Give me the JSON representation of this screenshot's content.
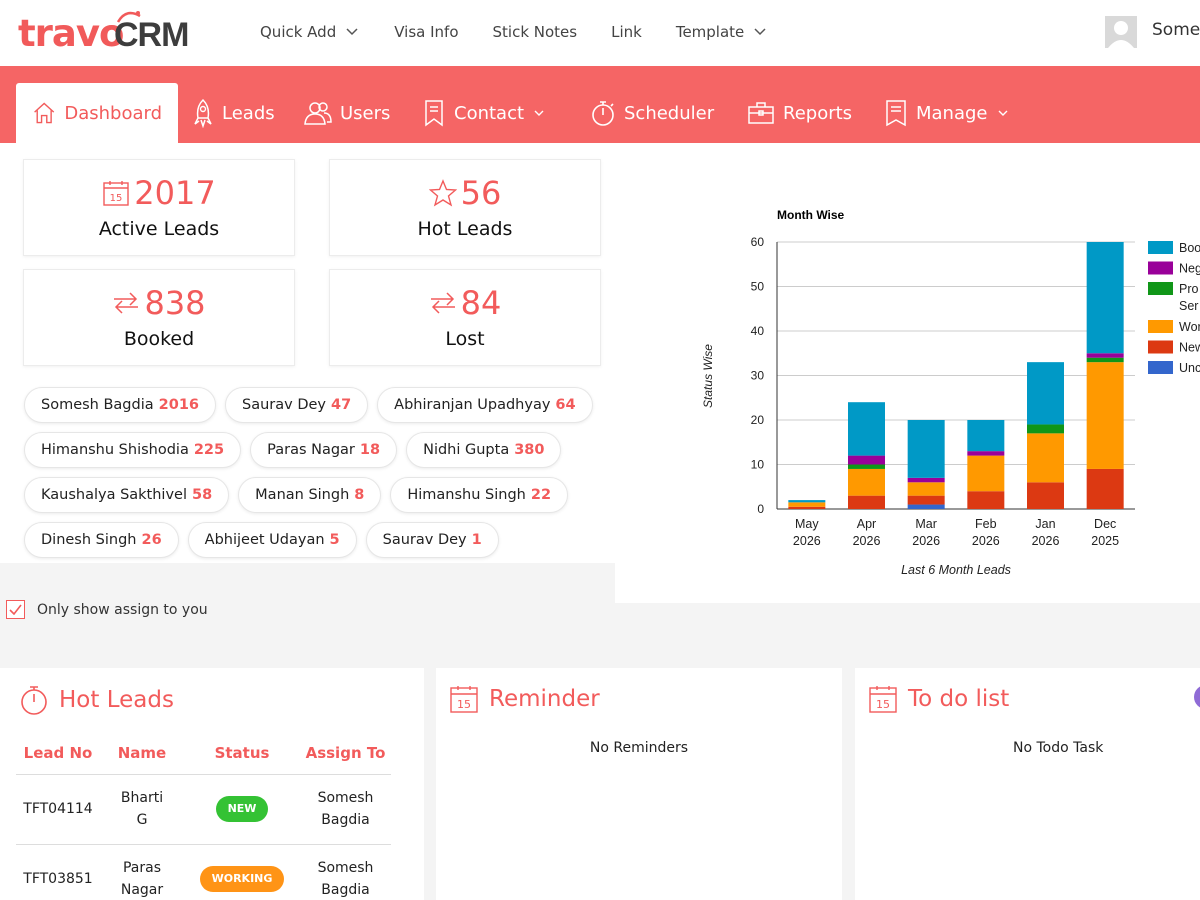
{
  "brand": {
    "logo_left": "travo",
    "logo_right": "CRM",
    "accent": "#f56565"
  },
  "topnav": {
    "items": [
      {
        "label": "Quick Add",
        "has_dropdown": true
      },
      {
        "label": "Visa Info",
        "has_dropdown": false
      },
      {
        "label": "Stick Notes",
        "has_dropdown": false
      },
      {
        "label": "Link",
        "has_dropdown": false
      },
      {
        "label": "Template",
        "has_dropdown": true
      }
    ],
    "username": "Some"
  },
  "mainnav": {
    "items": [
      {
        "label": "Dashboard",
        "icon": "home-icon",
        "active": true
      },
      {
        "label": "Leads",
        "icon": "rocket-icon"
      },
      {
        "label": "Users",
        "icon": "users-icon"
      },
      {
        "label": "Contact",
        "icon": "contact-icon",
        "has_dropdown": true
      },
      {
        "label": "Scheduler",
        "icon": "stopwatch-icon"
      },
      {
        "label": "Reports",
        "icon": "briefcase-icon"
      },
      {
        "label": "Manage",
        "icon": "clipboard-icon",
        "has_dropdown": true
      }
    ]
  },
  "stats": [
    {
      "value": "2017",
      "label": "Active Leads",
      "icon": "calendar-icon"
    },
    {
      "value": "56",
      "label": "Hot Leads",
      "icon": "star-icon"
    },
    {
      "value": "838",
      "label": "Booked",
      "icon": "exchange-icon"
    },
    {
      "value": "84",
      "label": "Lost",
      "icon": "exchange-icon"
    }
  ],
  "user_chips": [
    [
      {
        "name": "Somesh Bagdia",
        "count": "2016"
      },
      {
        "name": "Saurav Dey",
        "count": "47"
      },
      {
        "name": "Abhiranjan Upadhyay",
        "count": "64"
      }
    ],
    [
      {
        "name": "Himanshu Shishodia",
        "count": "225"
      },
      {
        "name": "Paras Nagar",
        "count": "18"
      },
      {
        "name": "Nidhi Gupta",
        "count": "380"
      }
    ],
    [
      {
        "name": "Kaushalya Sakthivel",
        "count": "58"
      },
      {
        "name": "Manan Singh",
        "count": "8"
      },
      {
        "name": "Himanshu Singh",
        "count": "22"
      }
    ],
    [
      {
        "name": "Dinesh Singh",
        "count": "26"
      },
      {
        "name": "Abhijeet Udayan",
        "count": "5"
      },
      {
        "name": "Saurav Dey",
        "count": "1"
      }
    ]
  ],
  "chart_data": {
    "type": "bar",
    "stacked": true,
    "title": "Month Wise",
    "xlabel": "Last 6 Month Leads",
    "ylabel": "Status Wise",
    "ylim": [
      0,
      60
    ],
    "yticks": [
      0,
      10,
      20,
      30,
      40,
      50,
      60
    ],
    "grid": true,
    "legend_position": "right",
    "categories": [
      [
        "May",
        "2026"
      ],
      [
        "Apr",
        "2026"
      ],
      [
        "Mar",
        "2026"
      ],
      [
        "Feb",
        "2026"
      ],
      [
        "Jan",
        "2026"
      ],
      [
        "Dec",
        "2025"
      ]
    ],
    "series": [
      {
        "name": "Unc",
        "color": "#3366cc",
        "values": [
          0,
          0,
          1,
          0,
          0,
          0
        ]
      },
      {
        "name": "New",
        "color": "#dc3912",
        "values": [
          0.5,
          3,
          2,
          4,
          6,
          9
        ]
      },
      {
        "name": "Wor",
        "color": "#ff9900",
        "values": [
          1,
          6,
          3,
          8,
          11,
          24
        ]
      },
      {
        "name": "Pro Ser",
        "color": "#109618",
        "values": [
          0,
          1,
          0,
          0,
          2,
          1
        ]
      },
      {
        "name": "Neg",
        "color": "#990099",
        "values": [
          0,
          2,
          1,
          1,
          0,
          1
        ]
      },
      {
        "name": "Boo",
        "color": "#0099c6",
        "values": [
          0.5,
          12,
          13,
          7,
          14,
          25
        ]
      }
    ],
    "legend_order": [
      "Boo",
      "Neg",
      "Pro Ser",
      "Wor",
      "New",
      "Unc"
    ]
  },
  "assign_filter": {
    "label": "Only show assign to you",
    "checked": true
  },
  "hot_leads": {
    "title": "Hot Leads",
    "columns": [
      "Lead No",
      "Name",
      "Status",
      "Assign To"
    ],
    "rows": [
      {
        "lead_no": "TFT04114",
        "name": "Bharti G",
        "status": "NEW",
        "status_color": "#34c234",
        "assign_to": "Somesh Bagdia"
      },
      {
        "lead_no": "TFT03851",
        "name": "Paras Nagar",
        "status": "WORKING",
        "status_color": "#ff9416",
        "assign_to": "Somesh Bagdia"
      }
    ]
  },
  "reminder": {
    "title": "Reminder",
    "empty_text": "No Reminders"
  },
  "todo": {
    "title": "To do list",
    "empty_text": "No Todo Task"
  }
}
